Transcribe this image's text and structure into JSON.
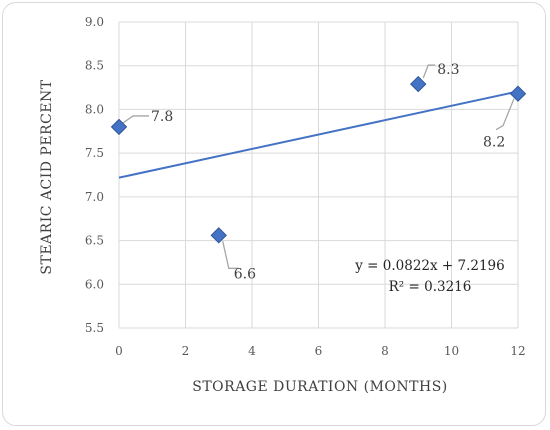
{
  "chart_data": {
    "type": "scatter",
    "xlabel": "STORAGE DURATION (MONTHS)",
    "ylabel": "STEARIC ACID PERCENT",
    "xlim": [
      0,
      12
    ],
    "ylim": [
      5.5,
      9.0
    ],
    "xticks": [
      0,
      2,
      4,
      6,
      8,
      10,
      12
    ],
    "yticks": [
      5.5,
      6.0,
      6.5,
      7.0,
      7.5,
      8.0,
      8.5,
      9.0
    ],
    "grid": true,
    "marker": "diamond",
    "marker_color": "#4472C4",
    "trendline_color": "#4472C4",
    "points": [
      {
        "x": 0,
        "y": 7.8,
        "label": "7.8"
      },
      {
        "x": 3,
        "y": 6.56,
        "label": "6.6"
      },
      {
        "x": 9,
        "y": 8.29,
        "label": "8.3"
      },
      {
        "x": 12,
        "y": 8.18,
        "label": "8.2"
      }
    ],
    "trendline": {
      "slope": 0.0822,
      "intercept": 7.2196,
      "equation": "y = 0.0822x + 7.2196",
      "r_squared": "R² = 0.3216"
    }
  }
}
